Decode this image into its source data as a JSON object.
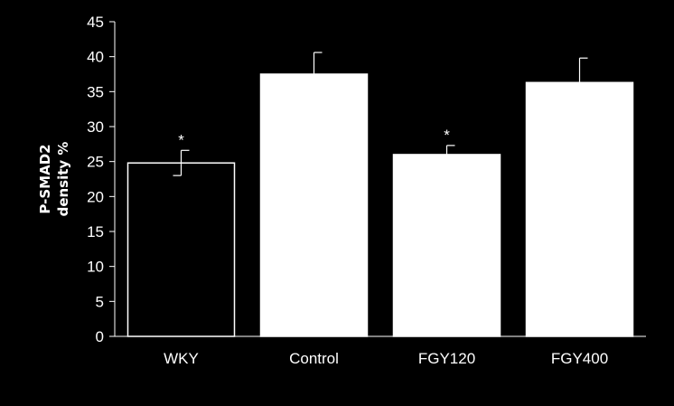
{
  "chart_data": {
    "type": "bar",
    "title": "",
    "xlabel": "",
    "ylabel_lines": [
      "P-SMAD2",
      "density %"
    ],
    "categories": [
      "WKY",
      "Control",
      "FGY120",
      "FGY400"
    ],
    "values": [
      24.8,
      37.5,
      26.0,
      36.3
    ],
    "errors": [
      1.8,
      3.1,
      1.3,
      3.5
    ],
    "significance": [
      "*",
      "",
      "*",
      ""
    ],
    "bar_fill": [
      "#000000",
      "#ffffff",
      "#ffffff",
      "#ffffff"
    ],
    "ylim": [
      0,
      45
    ],
    "yticks": [
      0,
      5,
      10,
      15,
      20,
      25,
      30,
      35,
      40,
      45
    ],
    "grid": false,
    "colors": {
      "background": "#000000",
      "axis": "#ffffff",
      "bar_outline": "#ffffff"
    }
  }
}
